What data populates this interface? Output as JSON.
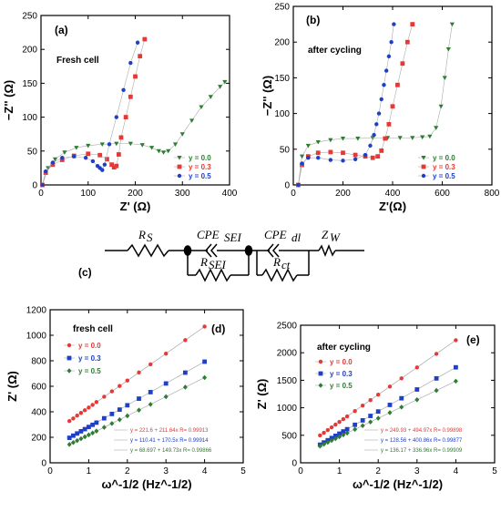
{
  "chart_data": [
    {
      "panel": "(a)",
      "type": "scatter",
      "inner_title": "Fresh cell",
      "xlabel": "Z' (Ω)",
      "ylabel": "−Z'' (Ω)",
      "xlim": [
        0,
        400
      ],
      "ylim": [
        0,
        250
      ],
      "xticks": [
        "0",
        "100",
        "200",
        "300",
        "400"
      ],
      "yticks": [
        "0",
        "50",
        "100",
        "150",
        "200",
        "250"
      ],
      "legend_position": "bottom-right",
      "series": [
        {
          "name": "y = 0.0",
          "color": "#2e7d32",
          "marker": "triangle",
          "x": [
            3,
            15,
            30,
            50,
            75,
            100,
            130,
            160,
            190,
            215,
            235,
            250,
            260,
            270,
            285,
            300,
            320,
            340,
            360,
            380,
            390
          ],
          "y": [
            0,
            25,
            38,
            48,
            55,
            58,
            60,
            61,
            61,
            59,
            55,
            50,
            48,
            50,
            60,
            75,
            95,
            115,
            130,
            145,
            152
          ]
        },
        {
          "name": "y = 0.3",
          "color": "#e53935",
          "marker": "square",
          "x": [
            3,
            10,
            25,
            45,
            70,
            100,
            125,
            140,
            150,
            155,
            160,
            165,
            170,
            180,
            190,
            200,
            210,
            220
          ],
          "y": [
            0,
            18,
            30,
            37,
            43,
            46,
            44,
            38,
            30,
            26,
            28,
            45,
            70,
            100,
            130,
            160,
            190,
            215
          ]
        },
        {
          "name": "y = 0.5",
          "color": "#1e40c8",
          "marker": "circle",
          "x": [
            3,
            10,
            25,
            45,
            70,
            95,
            110,
            120,
            125,
            130,
            135,
            145,
            160,
            175,
            190,
            205
          ],
          "y": [
            0,
            20,
            33,
            40,
            42,
            40,
            35,
            28,
            25,
            22,
            30,
            60,
            100,
            140,
            180,
            210
          ]
        }
      ]
    },
    {
      "panel": "(b)",
      "type": "scatter",
      "inner_title": "after cycling",
      "xlabel": "Z'(Ω)",
      "ylabel": "−Z'' (Ω)",
      "xlim": [
        0,
        800
      ],
      "ylim": [
        0,
        250
      ],
      "xticks": [
        "0",
        "200",
        "400",
        "600",
        "800"
      ],
      "yticks": [
        "0",
        "50",
        "100",
        "150",
        "200",
        "250"
      ],
      "legend_position": "bottom-right",
      "series": [
        {
          "name": "y = 0.0",
          "color": "#2e7d32",
          "marker": "triangle",
          "x": [
            20,
            35,
            60,
            100,
            150,
            200,
            260,
            320,
            380,
            430,
            480,
            520,
            550,
            575,
            595,
            610,
            625,
            640
          ],
          "y": [
            0,
            40,
            55,
            60,
            63,
            65,
            65,
            66,
            66,
            66,
            66,
            67,
            68,
            80,
            110,
            150,
            190,
            225
          ]
        },
        {
          "name": "y = 0.3",
          "color": "#e53935",
          "marker": "square",
          "x": [
            20,
            35,
            60,
            100,
            150,
            200,
            250,
            290,
            320,
            340,
            355,
            370,
            385,
            400,
            420,
            440,
            460,
            480
          ],
          "y": [
            0,
            28,
            40,
            45,
            46,
            45,
            42,
            40,
            38,
            40,
            48,
            65,
            85,
            110,
            140,
            170,
            200,
            225
          ]
        },
        {
          "name": "y = 0.5",
          "color": "#1e40c8",
          "marker": "circle",
          "x": [
            20,
            35,
            60,
            100,
            150,
            200,
            250,
            290,
            310,
            325,
            335,
            345,
            355,
            365,
            375,
            385,
            395,
            405
          ],
          "y": [
            0,
            30,
            38,
            38,
            35,
            34,
            36,
            42,
            55,
            70,
            85,
            100,
            120,
            140,
            160,
            180,
            200,
            225
          ]
        }
      ]
    },
    {
      "panel": "(d)",
      "type": "scatter",
      "inner_title": "fresh cell",
      "xlabel": "ω^-1/2 (Hz^-1/2)",
      "ylabel": "Z' (Ω)",
      "xlim": [
        0,
        5
      ],
      "ylim": [
        0,
        1200
      ],
      "xticks": [
        "0",
        "1",
        "2",
        "3",
        "4",
        "5"
      ],
      "yticks": [
        "0",
        "200",
        "400",
        "600",
        "800",
        "1000",
        "1200"
      ],
      "legend_position": "top-left",
      "series": [
        {
          "name": "y = 0.0",
          "color": "#e53935",
          "marker": "circle",
          "x": [
            0.5,
            0.6,
            0.7,
            0.8,
            0.9,
            1.0,
            1.1,
            1.2,
            1.4,
            1.6,
            1.8,
            2.0,
            2.3,
            2.6,
            3.0,
            3.5,
            4.0
          ],
          "y": [
            327,
            348,
            370,
            391,
            412,
            433,
            454,
            476,
            518,
            560,
            602,
            645,
            708,
            772,
            856,
            962,
            1068
          ],
          "fit": "y = 221.6 + 211.64x   R= 0.99913"
        },
        {
          "name": "y = 0.3",
          "color": "#1e40c8",
          "marker": "square",
          "x": [
            0.5,
            0.6,
            0.7,
            0.8,
            0.9,
            1.0,
            1.1,
            1.2,
            1.4,
            1.6,
            1.8,
            2.0,
            2.3,
            2.6,
            3.0,
            3.5,
            4.0
          ],
          "y": [
            196,
            213,
            230,
            247,
            264,
            281,
            298,
            315,
            349,
            383,
            417,
            451,
            503,
            554,
            622,
            707,
            793
          ],
          "fit": "y = 110.41 + 170.5x   R= 0.99914"
        },
        {
          "name": "y = 0.5",
          "color": "#2e7d32",
          "marker": "diamond",
          "x": [
            0.5,
            0.6,
            0.7,
            0.8,
            0.9,
            1.0,
            1.1,
            1.2,
            1.4,
            1.6,
            1.8,
            2.0,
            2.3,
            2.6,
            3.0,
            3.5,
            4.0
          ],
          "y": [
            144,
            159,
            174,
            189,
            204,
            219,
            234,
            249,
            278,
            308,
            338,
            368,
            413,
            458,
            518,
            593,
            668
          ],
          "fit": "y = 68.697 + 149.73x   R= 0.99866"
        }
      ]
    },
    {
      "panel": "(e)",
      "type": "scatter",
      "inner_title": "after cycling",
      "xlabel": "ω^-1/2 (Hz^-1/2)",
      "ylabel": "Z' (Ω)",
      "xlim": [
        0,
        5
      ],
      "ylim": [
        0,
        2500
      ],
      "xticks": [
        "0",
        "1",
        "2",
        "3",
        "4",
        "5"
      ],
      "yticks": [
        "0",
        "500",
        "1000",
        "1500",
        "2000",
        "2500"
      ],
      "legend_position": "top-left",
      "series": [
        {
          "name": "y = 0.0",
          "color": "#e53935",
          "marker": "circle",
          "x": [
            0.5,
            0.6,
            0.7,
            0.8,
            0.9,
            1.0,
            1.1,
            1.2,
            1.4,
            1.6,
            1.8,
            2.0,
            2.3,
            2.6,
            3.0,
            3.5,
            4.0
          ],
          "y": [
            497,
            546,
            595,
            645,
            694,
            744,
            793,
            843,
            941,
            1040,
            1139,
            1238,
            1386,
            1535,
            1733,
            1980,
            2228
          ],
          "fit": "y = 249.93 + 494.97x   R= 0.99898"
        },
        {
          "name": "y = 0.3",
          "color": "#1e40c8",
          "marker": "square",
          "x": [
            0.5,
            0.6,
            0.7,
            0.8,
            0.9,
            1.0,
            1.1,
            1.2,
            1.4,
            1.6,
            1.8,
            2.0,
            2.3,
            2.6,
            3.0,
            3.5,
            4.0
          ],
          "y": [
            329,
            369,
            410,
            450,
            490,
            530,
            570,
            610,
            691,
            771,
            852,
            932,
            1052,
            1173,
            1333,
            1534,
            1735
          ],
          "fit": "y = 128.56 + 400.86x   R= 0.99877"
        },
        {
          "name": "y = 0.5",
          "color": "#2e7d32",
          "marker": "diamond",
          "x": [
            0.5,
            0.6,
            0.7,
            0.8,
            0.9,
            1.0,
            1.1,
            1.2,
            1.4,
            1.6,
            1.8,
            2.0,
            2.3,
            2.6,
            3.0,
            3.5,
            4.0
          ],
          "y": [
            304,
            338,
            372,
            406,
            439,
            473,
            507,
            540,
            608,
            675,
            742,
            810,
            911,
            1012,
            1146,
            1315,
            1484
          ],
          "fit": "y = 136.17 + 336.96x   R= 0.99909"
        }
      ]
    }
  ],
  "circuit": {
    "panel": "(c)",
    "labels": [
      "R",
      "S",
      "CPE",
      "SEI",
      "R",
      "SEI",
      "CPE",
      "dl",
      "R",
      "ct",
      "Z",
      "W"
    ]
  }
}
